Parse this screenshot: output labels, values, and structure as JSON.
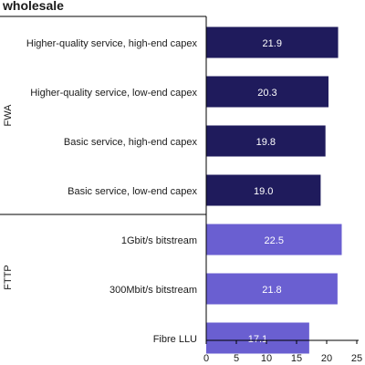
{
  "chart_data": {
    "type": "bar",
    "orientation": "horizontal",
    "title": "wholesale",
    "xlim": [
      0,
      25
    ],
    "xticks": [
      0,
      5,
      10,
      15,
      20,
      25
    ],
    "grid": false,
    "colors": {
      "FWA": "#1f1b5c",
      "FTTP": "#6a5fd1",
      "axis": "#000000",
      "label_text": "#ffffff"
    },
    "groups": [
      {
        "name": "FWA",
        "categories": [
          "Higher-quality service, high-end capex",
          "Higher-quality service, low-end capex",
          "Basic service, high-end capex",
          "Basic service, low-end capex"
        ],
        "values": [
          21.9,
          20.3,
          19.8,
          19.0
        ],
        "labels": [
          "21.9",
          "20.3",
          "19.8",
          "19.0"
        ]
      },
      {
        "name": "FTTP",
        "categories": [
          "1Gbit/s bitstream",
          "300Mbit/s bitstream",
          "Fibre LLU"
        ],
        "values": [
          22.5,
          21.8,
          17.1
        ],
        "labels": [
          "22.5",
          "21.8",
          "17.1"
        ]
      }
    ]
  }
}
